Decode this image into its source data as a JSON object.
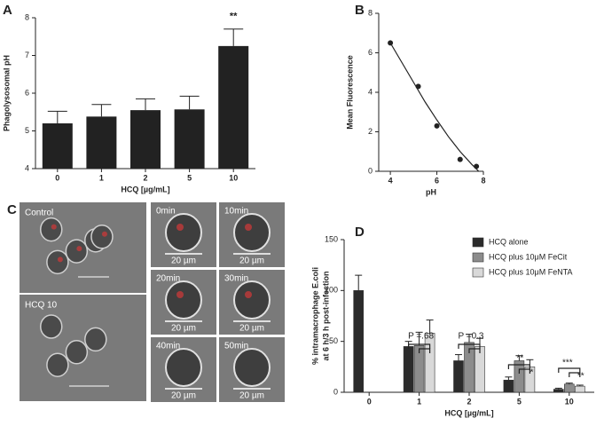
{
  "chart_data": [
    {
      "type": "bar",
      "panel": "A",
      "y_label": "Phagolysosomal pH",
      "x_label": "HCQ [µg/mL]",
      "categories": [
        "0",
        "1",
        "2",
        "5",
        "10"
      ],
      "values": [
        5.2,
        5.38,
        5.55,
        5.57,
        7.25
      ],
      "errors": [
        0.32,
        0.32,
        0.3,
        0.35,
        0.45
      ],
      "color": "#222222",
      "ylim": [
        4,
        8
      ],
      "yticks": [
        4,
        5,
        6,
        7,
        8
      ],
      "annotations": [
        "**"
      ]
    },
    {
      "type": "scatter",
      "panel": "B",
      "y_label": "Mean Fluorescence",
      "x_label": "pH",
      "x": [
        4,
        5.2,
        6,
        7,
        7.7
      ],
      "values": [
        6.5,
        4.3,
        2.3,
        0.6,
        0.25
      ],
      "color": "#222222",
      "fit": {
        "x": [
          4,
          4.5,
          5,
          5.5,
          6,
          6.5,
          7,
          7.5,
          7.8
        ],
        "y": [
          6.5,
          5.5,
          4.5,
          3.5,
          2.6,
          1.75,
          1.0,
          0.35,
          0.0
        ]
      },
      "xlim": [
        3.5,
        8
      ],
      "xticks": [
        4,
        6,
        8
      ],
      "ylim": [
        0,
        8
      ],
      "yticks": [
        0,
        2,
        4,
        6,
        8
      ]
    },
    {
      "type": "grouped-bar",
      "panel": "D",
      "y_label": [
        "% intramacrophage E.coli",
        "at 6 h/3 h post-infection"
      ],
      "x_label": "HCQ [µg/mL]",
      "categories": [
        "0",
        "1",
        "2",
        "5",
        "10"
      ],
      "series": [
        {
          "name": "HCQ alone",
          "color": "#2b2b2b",
          "values": [
            100,
            45,
            31,
            12,
            3
          ],
          "errors": [
            15,
            5,
            6,
            3,
            1
          ]
        },
        {
          "name": "HCQ plus 10μM FeCit",
          "color": "#8c8c8c",
          "values": [
            null,
            46,
            49,
            31,
            8
          ],
          "errors": [
            null,
            13,
            8,
            5,
            1
          ]
        },
        {
          "name": "HCQ plus 10μM FeNTA",
          "color": "#d9d9d9",
          "values": [
            null,
            58,
            45,
            25,
            6
          ],
          "errors": [
            null,
            13,
            8,
            7,
            1
          ]
        }
      ],
      "ylim": [
        0,
        150
      ],
      "yticks": [
        0,
        50,
        100,
        150
      ],
      "annotations": [
        "P =.68",
        "P =0.3",
        "**",
        "*",
        "***",
        "**"
      ]
    }
  ],
  "panel_c": {
    "label": "C",
    "left": [
      "Control",
      "HCQ 10"
    ],
    "right": [
      "0min",
      "10min",
      "20min",
      "30min",
      "40min",
      "50min"
    ],
    "scale": "20 µm"
  }
}
